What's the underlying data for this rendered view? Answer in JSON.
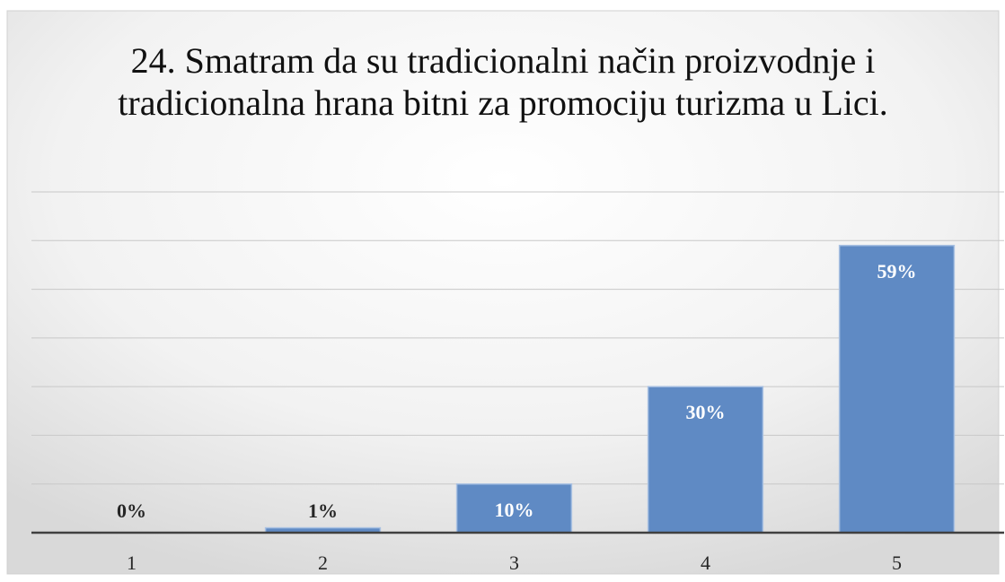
{
  "chart_data": {
    "type": "bar",
    "title": "24. Smatram da su tradicionalni način proizvodnje i tradicionalna hrana bitni za promociju turizma u Lici.",
    "categories": [
      "1",
      "2",
      "3",
      "4",
      "5"
    ],
    "values": [
      0,
      1,
      10,
      30,
      59
    ],
    "value_labels": [
      "0%",
      "1%",
      "10%",
      "30%",
      "59%"
    ],
    "color": "#5f8ac4",
    "ylim": [
      0,
      70
    ],
    "yticks": [
      0,
      10,
      20,
      30,
      40,
      50,
      60,
      70
    ],
    "grid": true
  }
}
